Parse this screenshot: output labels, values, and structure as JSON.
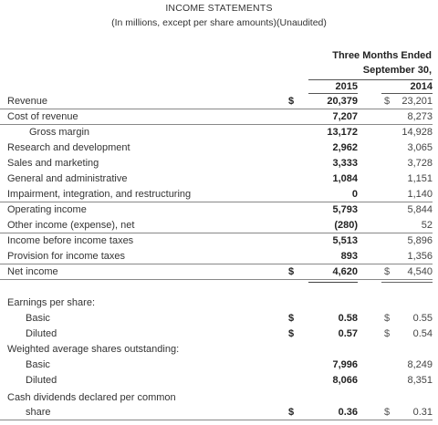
{
  "title": "INCOME STATEMENTS",
  "subtitle": "(In millions, except per share amounts)(Unaudited)",
  "header": {
    "period_line1": "Three Months Ended",
    "period_line2": "September 30,",
    "year_current": "2015",
    "year_prior": "2014"
  },
  "rows": [
    {
      "label": "Revenue",
      "d1": "$",
      "v1": "20,379",
      "d2": "$",
      "v2": "23,201"
    },
    {
      "label": "Cost of revenue",
      "d1": "",
      "v1": "7,207",
      "d2": "",
      "v2": "8,273"
    },
    {
      "label": "Gross margin",
      "d1": "",
      "v1": "13,172",
      "d2": "",
      "v2": "14,928"
    },
    {
      "label": "Research and development",
      "d1": "",
      "v1": "2,962",
      "d2": "",
      "v2": "3,065"
    },
    {
      "label": "Sales and marketing",
      "d1": "",
      "v1": "3,333",
      "d2": "",
      "v2": "3,728"
    },
    {
      "label": "General and administrative",
      "d1": "",
      "v1": "1,084",
      "d2": "",
      "v2": "1,151"
    },
    {
      "label": "Impairment, integration, and restructuring",
      "d1": "",
      "v1": "0",
      "d2": "",
      "v2": "1,140"
    },
    {
      "label": "Operating income",
      "d1": "",
      "v1": "5,793",
      "d2": "",
      "v2": "5,844"
    },
    {
      "label": "Other income (expense), net",
      "d1": "",
      "v1": "(280)",
      "d2": "",
      "v2": "52"
    },
    {
      "label": "Income before income taxes",
      "d1": "",
      "v1": "5,513",
      "d2": "",
      "v2": "5,896"
    },
    {
      "label": "Provision for income taxes",
      "d1": "",
      "v1": "893",
      "d2": "",
      "v2": "1,356"
    },
    {
      "label": "Net income",
      "d1": "$",
      "v1": "4,620",
      "d2": "$",
      "v2": "4,540"
    },
    {
      "label": "Earnings per share:",
      "d1": "",
      "v1": "",
      "d2": "",
      "v2": ""
    },
    {
      "label": "Basic",
      "d1": "$",
      "v1": "0.58",
      "d2": "$",
      "v2": "0.55"
    },
    {
      "label": "Diluted",
      "d1": "$",
      "v1": "0.57",
      "d2": "$",
      "v2": "0.54"
    },
    {
      "label": "Weighted average shares outstanding:",
      "d1": "",
      "v1": "",
      "d2": "",
      "v2": ""
    },
    {
      "label": "Basic",
      "d1": "",
      "v1": "7,996",
      "d2": "",
      "v2": "8,249"
    },
    {
      "label": "Diluted",
      "d1": "",
      "v1": "8,066",
      "d2": "",
      "v2": "8,351"
    },
    {
      "label": "Cash dividends declared per common",
      "d1": "",
      "v1": "",
      "d2": "",
      "v2": ""
    },
    {
      "label": "share",
      "d1": "$",
      "v1": "0.36",
      "d2": "$",
      "v2": "0.31"
    }
  ]
}
